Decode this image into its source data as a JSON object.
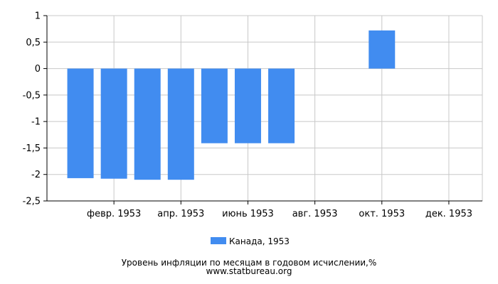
{
  "chart_data": {
    "type": "bar",
    "title": "Уровень инфляции по месяцам в годовом исчислении,%",
    "source": "www.statbureau.org",
    "legend": {
      "position": "bottom",
      "entries": [
        "Канада, 1953"
      ]
    },
    "colors": {
      "bar": "#418cf0",
      "grid": "#c8c8c8",
      "axis": "#000000"
    },
    "grid": true,
    "ylim": [
      -2.5,
      1
    ],
    "yticks": [
      "1",
      "0,5",
      "0",
      "-0,5",
      "-1",
      "-1,5",
      "-2",
      "-2,5"
    ],
    "ytick_values": [
      1,
      0.5,
      0,
      -0.5,
      -1,
      -1.5,
      -2,
      -2.5
    ],
    "xtick_labels": [
      {
        "index": 1,
        "label": "февр. 1953"
      },
      {
        "index": 3,
        "label": "апр. 1953"
      },
      {
        "index": 5,
        "label": "июнь 1953"
      },
      {
        "index": 7,
        "label": "авг. 1953"
      },
      {
        "index": 9,
        "label": "окт. 1953"
      },
      {
        "index": 11,
        "label": "дек. 1953"
      }
    ],
    "series": [
      {
        "name": "Канада, 1953",
        "values": [
          -2.07,
          -2.08,
          -2.1,
          -2.1,
          -1.41,
          -1.41,
          -1.41,
          null,
          null,
          0.72,
          null,
          null
        ]
      }
    ]
  }
}
